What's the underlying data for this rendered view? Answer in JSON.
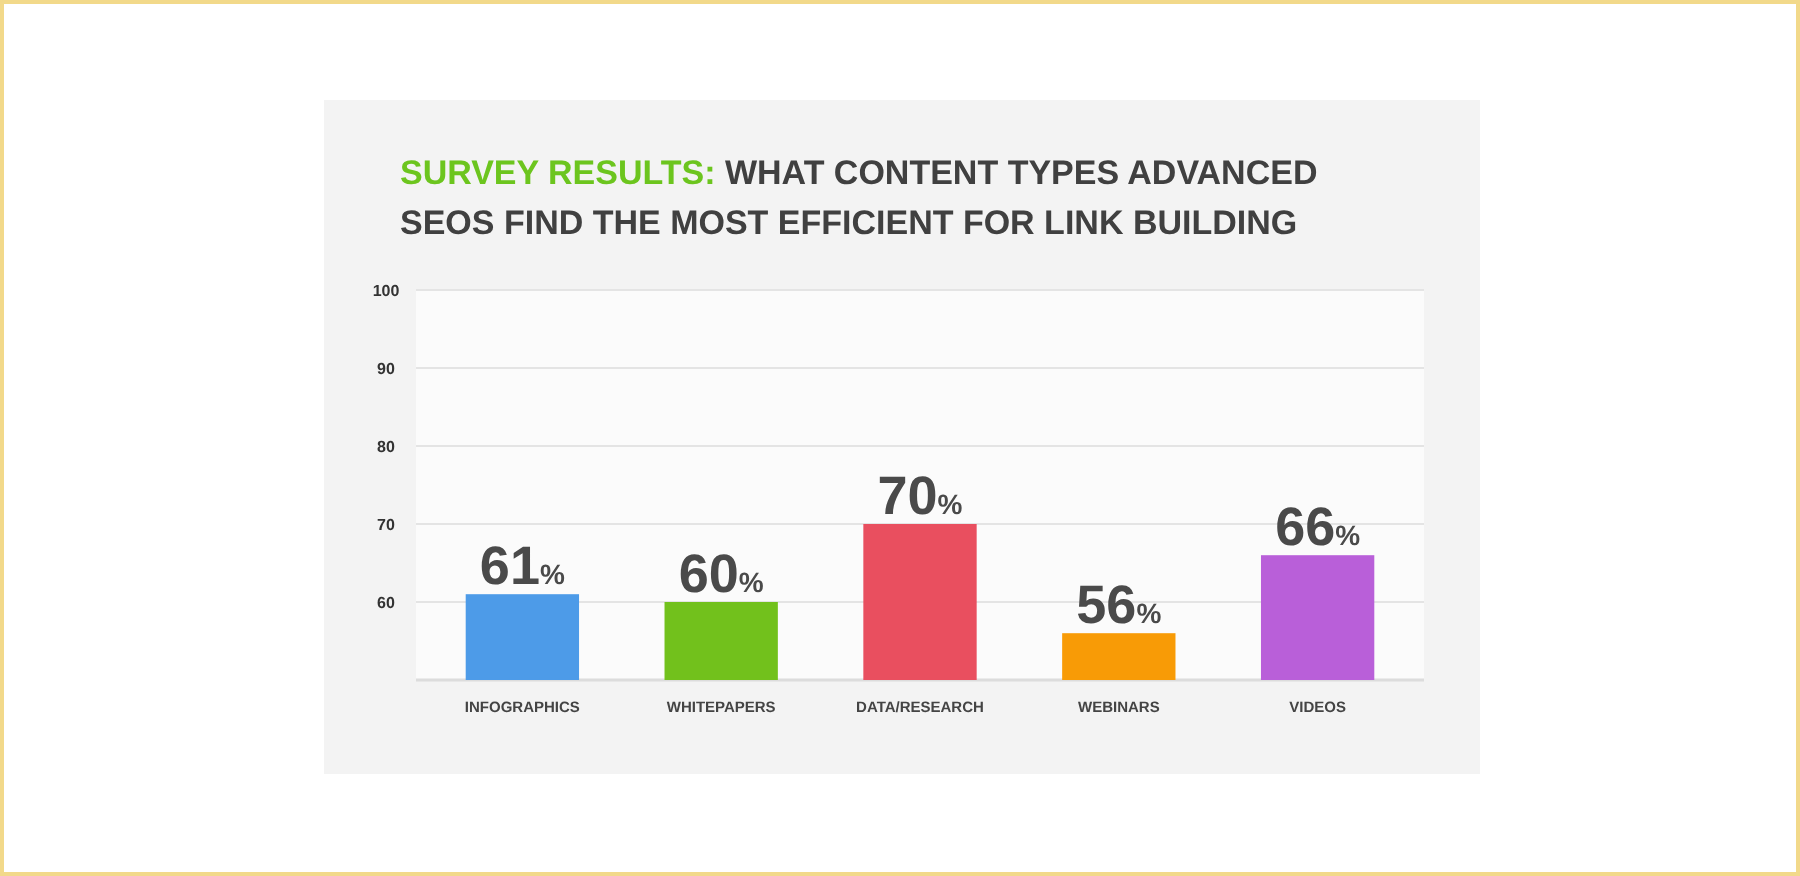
{
  "chart_data": {
    "type": "bar",
    "title": "SURVEY RESULTS: WHAT CONTENT TYPES ADVANCED SEOS FIND THE MOST EFFICIENT FOR LINK BUILDING",
    "categories": [
      "INFOGRAPHICS",
      "WHITEPAPERS",
      "DATA/RESEARCH",
      "WEBINARS",
      "VIDEOS"
    ],
    "values": [
      61,
      60,
      70,
      56,
      66
    ],
    "colors": [
      "#4d9be8",
      "#72c11c",
      "#e94f5f",
      "#f89b06",
      "#b95fd9"
    ],
    "value_labels": [
      "61%",
      "60%",
      "70%",
      "56%",
      "66%"
    ],
    "ylim": [
      50,
      100
    ],
    "yticks": [
      60,
      70,
      80,
      90,
      100
    ],
    "grid": "y"
  }
}
